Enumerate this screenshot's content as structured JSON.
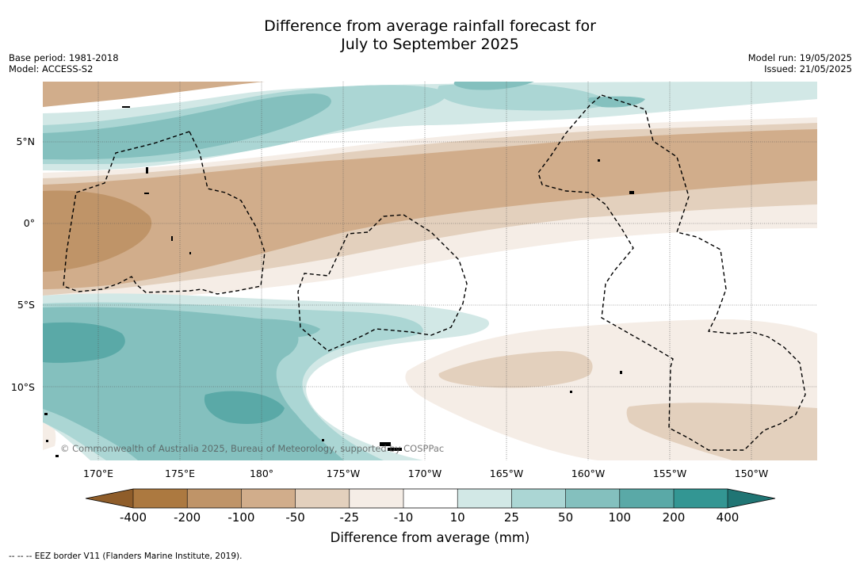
{
  "title_line1": "Difference from average rainfall forecast for",
  "title_line2": "July to September 2025",
  "base_period": "Base period: 1981-2018",
  "model": "Model: ACCESS-S2",
  "model_run": "Model run: 19/05/2025",
  "issued": "Issued: 21/05/2025",
  "lat_labels": [
    "5°N",
    "0°",
    "5°S",
    "10°S"
  ],
  "lon_labels": [
    "170°E",
    "175°E",
    "180°",
    "175°W",
    "170°W",
    "165°W",
    "160°W",
    "155°W",
    "150°W"
  ],
  "copyright": "© Commonwealth of Australia 2025, Bureau of Meteorology, supported by COSPPac",
  "colorbar": {
    "title": "Difference from average (mm)",
    "ticks": [
      "-400",
      "-200",
      "-100",
      "-50",
      "-25",
      "-10",
      "10",
      "25",
      "50",
      "100",
      "200",
      "400"
    ],
    "colors": {
      "lt_neg400": "#8f5d2a",
      "neg400_200": "#ac7940",
      "neg200_100": "#bf9468",
      "neg100_50": "#d1ad8b",
      "neg50_25": "#e3d0bd",
      "neg25_10": "#f5ede6",
      "neg10_10": "#ffffff",
      "p10_25": "#d2e8e6",
      "p25_50": "#abd6d4",
      "p50_100": "#84c0be",
      "p100_200": "#5aa9a7",
      "p200_400": "#339693",
      "gt_400": "#207574"
    }
  },
  "footer": "--  --  -- EEZ border V11 (Flanders Marine Institute, 2019)."
}
